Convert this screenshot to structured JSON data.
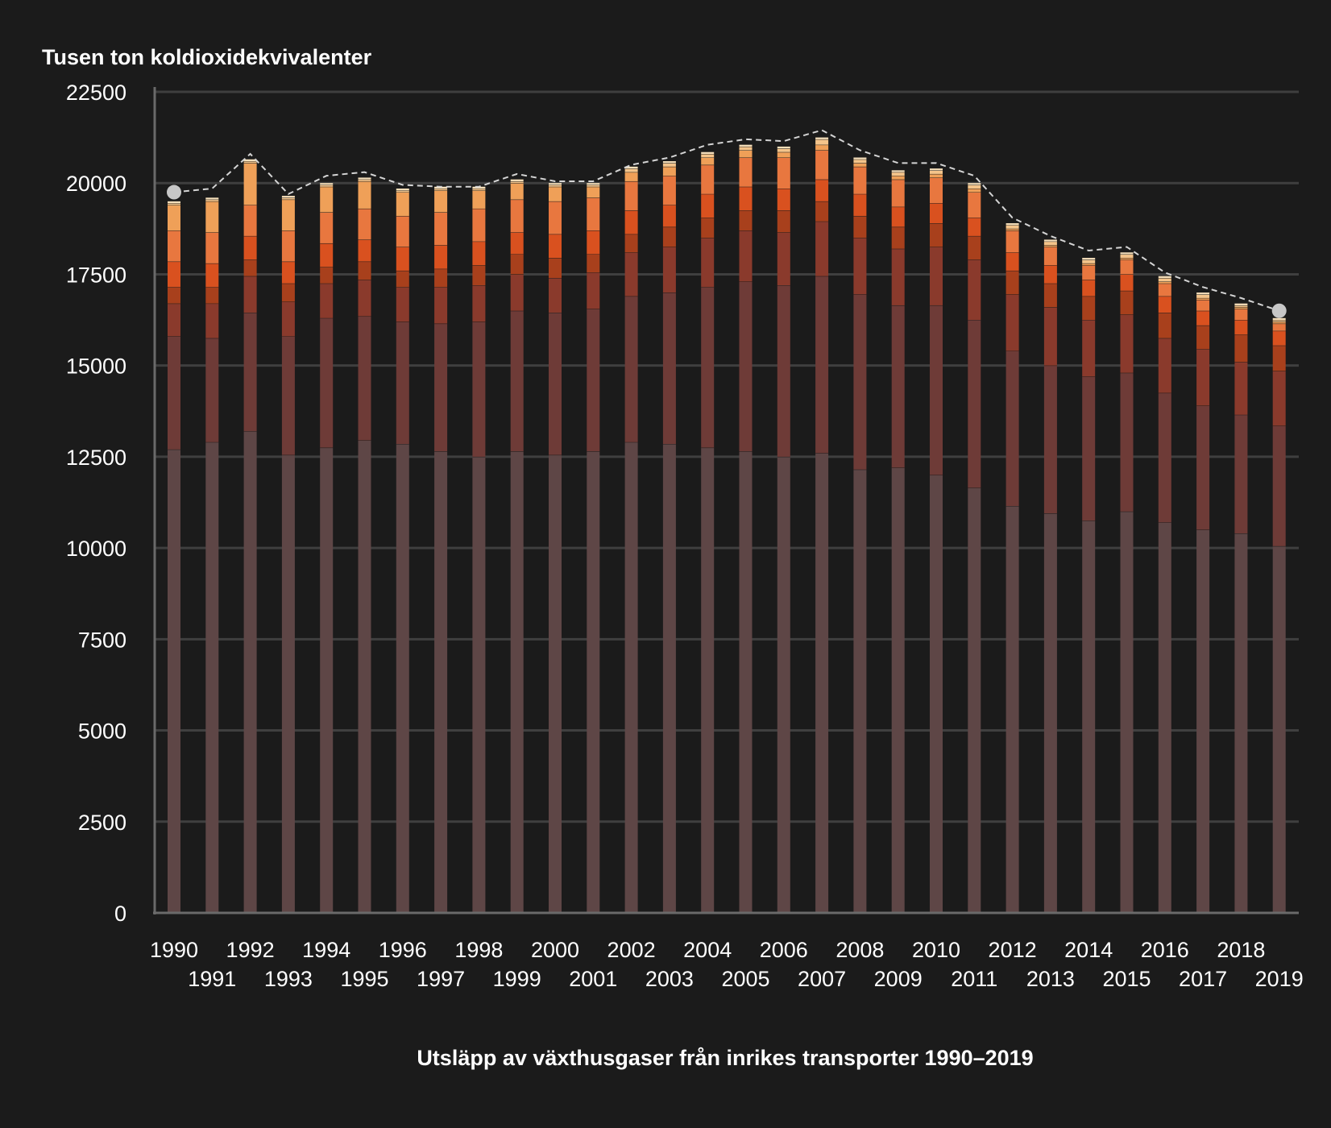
{
  "chart_data": {
    "type": "bar",
    "stacked": true,
    "title": "Utsläpp av växthusgaser från inrikes transporter 1990–2019",
    "ylabel": "Tusen ton koldioxidekvivalenter",
    "ylim": [
      0,
      22500
    ],
    "yticks": [
      0,
      2500,
      5000,
      7500,
      10000,
      12500,
      15000,
      17500,
      20000,
      22500
    ],
    "grid": true,
    "categories": [
      "1990",
      "1991",
      "1992",
      "1993",
      "1994",
      "1995",
      "1996",
      "1997",
      "1998",
      "1999",
      "2000",
      "2001",
      "2002",
      "2003",
      "2004",
      "2005",
      "2006",
      "2007",
      "2008",
      "2009",
      "2010",
      "2011",
      "2012",
      "2013",
      "2014",
      "2015",
      "2016",
      "2017",
      "2018",
      "2019"
    ],
    "series": [
      {
        "color": "#5e4646",
        "values": [
          12700,
          12900,
          13200,
          12550,
          12750,
          12950,
          12850,
          12650,
          12500,
          12650,
          12550,
          12650,
          12900,
          12850,
          12750,
          12650,
          12500,
          12600,
          12150,
          12200,
          12000,
          11650,
          11150,
          10950,
          10750,
          11000,
          10700,
          10500,
          10400,
          10050
        ]
      },
      {
        "color": "#6e3b37",
        "values": [
          3100,
          2850,
          3250,
          3250,
          3550,
          3400,
          3350,
          3500,
          3700,
          3850,
          3900,
          3900,
          4000,
          4150,
          4400,
          4650,
          4700,
          4850,
          4800,
          4450,
          4650,
          4600,
          4250,
          4050,
          3950,
          3800,
          3550,
          3400,
          3250,
          3300
        ]
      },
      {
        "color": "#8a3a2c",
        "values": [
          900,
          950,
          1000,
          950,
          950,
          1000,
          950,
          1000,
          1000,
          1000,
          950,
          1000,
          1200,
          1250,
          1350,
          1400,
          1450,
          1500,
          1550,
          1550,
          1600,
          1650,
          1550,
          1600,
          1550,
          1600,
          1500,
          1550,
          1450,
          1500
        ]
      },
      {
        "color": "#a8401c",
        "values": [
          450,
          450,
          450,
          500,
          450,
          500,
          450,
          500,
          550,
          550,
          550,
          500,
          500,
          550,
          550,
          550,
          600,
          550,
          600,
          600,
          650,
          650,
          650,
          650,
          650,
          650,
          700,
          650,
          750,
          700
        ]
      },
      {
        "color": "#d9511f",
        "values": [
          700,
          650,
          650,
          600,
          650,
          600,
          650,
          650,
          650,
          600,
          650,
          650,
          650,
          600,
          650,
          650,
          600,
          600,
          600,
          550,
          550,
          500,
          500,
          500,
          450,
          450,
          450,
          400,
          400,
          400
        ]
      },
      {
        "color": "#e8773f",
        "values": [
          850,
          850,
          850,
          850,
          850,
          850,
          850,
          900,
          900,
          900,
          900,
          900,
          800,
          800,
          800,
          800,
          850,
          800,
          750,
          750,
          700,
          700,
          600,
          500,
          400,
          400,
          350,
          300,
          300,
          200
        ]
      },
      {
        "color": "#efa058",
        "values": [
          700,
          850,
          1150,
          850,
          700,
          750,
          650,
          600,
          500,
          450,
          400,
          300,
          250,
          250,
          200,
          200,
          150,
          150,
          100,
          100,
          100,
          100,
          50,
          50,
          50,
          50,
          50,
          50,
          50,
          50
        ]
      },
      {
        "color": "#f4c48a",
        "values": [
          50,
          50,
          50,
          50,
          50,
          50,
          50,
          50,
          50,
          50,
          50,
          50,
          100,
          100,
          100,
          100,
          100,
          150,
          100,
          100,
          100,
          100,
          100,
          100,
          100,
          100,
          100,
          100,
          50,
          50
        ]
      },
      {
        "color": "#f6dfba",
        "values": [
          50,
          50,
          50,
          50,
          50,
          50,
          50,
          50,
          50,
          50,
          50,
          50,
          50,
          50,
          50,
          50,
          50,
          50,
          50,
          50,
          50,
          50,
          50,
          50,
          50,
          50,
          50,
          50,
          50,
          50
        ]
      }
    ],
    "trend_line": {
      "style": "dashed",
      "color": "#d4d4d4",
      "values": [
        19750,
        19850,
        20800,
        19700,
        20200,
        20300,
        19950,
        19900,
        19900,
        20250,
        20050,
        20050,
        20500,
        20700,
        21050,
        21200,
        21150,
        21450,
        20900,
        20550,
        20550,
        20200,
        19050,
        18550,
        18150,
        18250,
        17550,
        17150,
        16850,
        16500
      ],
      "endpoint_markers": [
        "1990",
        "2019"
      ]
    }
  }
}
